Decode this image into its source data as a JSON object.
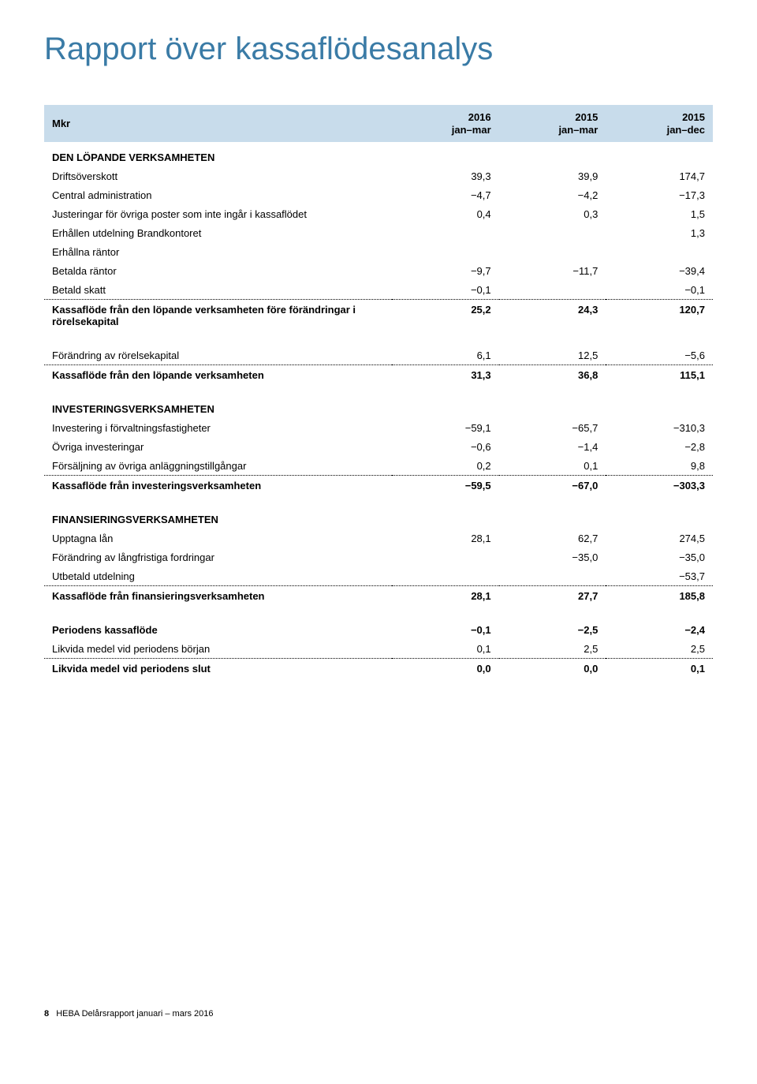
{
  "title": "Rapport över kassaflödesanalys",
  "colors": {
    "title": "#3a7ba6",
    "header_bg": "#c8dceb",
    "text": "#000000",
    "background": "#ffffff"
  },
  "table": {
    "columns": [
      "Mkr",
      "2016\njan–mar",
      "2015\njan–mar",
      "2015\njan–dec"
    ],
    "sections": [
      {
        "heading": "DEN LÖPANDE VERKSAMHETEN",
        "rows": [
          {
            "label": "Driftsöverskott",
            "v": [
              "39,3",
              "39,9",
              "174,7"
            ]
          },
          {
            "label": "Central administration",
            "v": [
              "−4,7",
              "−4,2",
              "−17,3"
            ]
          },
          {
            "label": "Justeringar för övriga poster som inte ingår i kassaflödet",
            "v": [
              "0,4",
              "0,3",
              "1,5"
            ]
          },
          {
            "label": "Erhållen utdelning Brandkontoret",
            "v": [
              "",
              "",
              "1,3"
            ]
          },
          {
            "label": "Erhållna räntor",
            "v": [
              "",
              "",
              ""
            ]
          },
          {
            "label": "Betalda räntor",
            "v": [
              "−9,7",
              "−11,7",
              "−39,4"
            ]
          },
          {
            "label": "Betald skatt",
            "v": [
              "−0,1",
              "",
              "−0,1"
            ],
            "dotted": true
          },
          {
            "label": "Kassaflöde från den löpande verksamheten före förändringar i rörelsekapital",
            "v": [
              "25,2",
              "24,3",
              "120,7"
            ],
            "bold": true
          }
        ]
      },
      {
        "rows": [
          {
            "label": "Förändring av rörelsekapital",
            "v": [
              "6,1",
              "12,5",
              "−5,6"
            ],
            "gap_before": true,
            "dotted": true
          },
          {
            "label": "Kassaflöde från den löpande verksamheten",
            "v": [
              "31,3",
              "36,8",
              "115,1"
            ],
            "bold": true
          }
        ]
      },
      {
        "heading": "INVESTERINGSVERKSAMHETEN",
        "gap_before": true,
        "rows": [
          {
            "label": "Investering i förvaltningsfastigheter",
            "v": [
              "−59,1",
              "−65,7",
              "−310,3"
            ]
          },
          {
            "label": "Övriga investeringar",
            "v": [
              "−0,6",
              "−1,4",
              "−2,8"
            ]
          },
          {
            "label": "Försäljning av övriga anläggningstillgångar",
            "v": [
              "0,2",
              "0,1",
              "9,8"
            ],
            "dotted": true
          },
          {
            "label": "Kassaflöde från investeringsverksamheten",
            "v": [
              "−59,5",
              "−67,0",
              "−303,3"
            ],
            "bold": true
          }
        ]
      },
      {
        "heading": "FINANSIERINGSVERKSAMHETEN",
        "gap_before": true,
        "rows": [
          {
            "label": "Upptagna lån",
            "v": [
              "28,1",
              "62,7",
              "274,5"
            ]
          },
          {
            "label": "Förändring av långfristiga fordringar",
            "v": [
              "",
              "−35,0",
              "−35,0"
            ]
          },
          {
            "label": "Utbetald utdelning",
            "v": [
              "",
              "",
              "−53,7"
            ],
            "dotted": true
          },
          {
            "label": "Kassaflöde från finansieringsverksamheten",
            "v": [
              "28,1",
              "27,7",
              "185,8"
            ],
            "bold": true
          }
        ]
      },
      {
        "rows": [
          {
            "label": "Periodens kassaflöde",
            "v": [
              "−0,1",
              "−2,5",
              "−2,4"
            ],
            "gap_before": true,
            "bold": true
          },
          {
            "label": "Likvida medel vid periodens början",
            "v": [
              "0,1",
              "2,5",
              "2,5"
            ],
            "dotted": true
          },
          {
            "label": "Likvida medel vid periodens slut",
            "v": [
              "0,0",
              "0,0",
              "0,1"
            ],
            "bold": true
          }
        ]
      }
    ]
  },
  "footer": {
    "page_number": "8",
    "text": "HEBA Delårsrapport januari – mars 2016"
  }
}
